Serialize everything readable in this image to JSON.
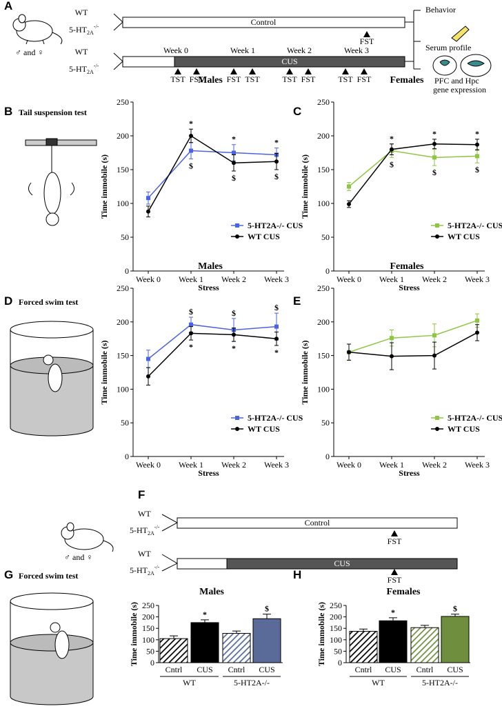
{
  "panel_a": {
    "letter": "A",
    "wt": "WT",
    "ko_base": "5-HT",
    "ko_sub": "2A",
    "ko_sup": "-/-",
    "sexes": "♂ and ♀",
    "control": "Control",
    "control_test": "FST",
    "weeks": [
      "Week 0",
      "Week 1",
      "Week 2",
      "Week 3"
    ],
    "cus": "CUS",
    "tests": [
      "TST",
      "FST",
      "FST",
      "TST",
      "TST",
      "FST",
      "TST",
      "FST"
    ],
    "outputs": [
      "Behavior",
      "Serum profile",
      "PFC and Hpc",
      "gene expression"
    ]
  },
  "panels": {
    "b": {
      "letter": "B",
      "label": "Tail suspension test"
    },
    "c": {
      "letter": "C"
    },
    "d": {
      "letter": "D",
      "label": "Forced swim test"
    },
    "e": {
      "letter": "E"
    },
    "g": {
      "letter": "G",
      "label": "Forced swim test"
    },
    "h": {
      "letter": "H"
    }
  },
  "panel_f": {
    "letter": "F",
    "wt": "WT",
    "ko_base": "5-HT",
    "ko_sub": "2A",
    "ko_sup": "-/-",
    "sexes": "♂ and ♀",
    "control": "Control",
    "cus": "CUS",
    "test": "FST"
  },
  "chart_data": [
    {
      "type": "line",
      "title": "Males",
      "xlabel": "Stress",
      "ylabel": "Time immobile (s)",
      "categories": [
        "Week 0",
        "Week 1",
        "Week 2",
        "Week 3"
      ],
      "ylim": [
        0,
        250
      ],
      "yticks": [
        0,
        50,
        100,
        150,
        200,
        250
      ],
      "series": [
        {
          "name": "5-HT2A-/- CUS",
          "color": "#4a63e0",
          "marker": "square",
          "values": [
            108,
            178,
            175,
            172
          ],
          "errors": [
            9,
            12,
            12,
            10
          ]
        },
        {
          "name": "WT CUS",
          "color": "#000000",
          "marker": "circle",
          "values": [
            88,
            200,
            160,
            162
          ],
          "errors": [
            8,
            10,
            12,
            12
          ]
        }
      ],
      "annotations_above": [
        null,
        "*",
        "*",
        "*"
      ],
      "annotations_below": [
        null,
        "$",
        "$",
        "$"
      ]
    },
    {
      "type": "line",
      "title": "Females",
      "xlabel": "Stress",
      "ylabel": "Time immobile (s)",
      "categories": [
        "Week 0",
        "Week 1",
        "Week 2",
        "Week 3"
      ],
      "ylim": [
        0,
        250
      ],
      "yticks": [
        0,
        50,
        100,
        150,
        200,
        250
      ],
      "series": [
        {
          "name": "5-HT2A-/- CUS",
          "color": "#8dc63f",
          "marker": "square",
          "values": [
            125,
            178,
            168,
            170
          ],
          "errors": [
            6,
            10,
            12,
            10
          ]
        },
        {
          "name": "WT CUS",
          "color": "#000000",
          "marker": "circle",
          "values": [
            99,
            180,
            188,
            187
          ],
          "errors": [
            5,
            8,
            7,
            8
          ]
        }
      ],
      "annotations_above": [
        null,
        "*",
        "*",
        "*"
      ],
      "annotations_below": [
        null,
        "$",
        "$",
        "$"
      ]
    },
    {
      "type": "line",
      "title": "Males",
      "xlabel": "Stress",
      "ylabel": "Time immobile (s)",
      "categories": [
        "Week 0",
        "Week 1",
        "Week 2",
        "Week 3"
      ],
      "ylim": [
        0,
        250
      ],
      "yticks": [
        0,
        50,
        100,
        150,
        200,
        250
      ],
      "series": [
        {
          "name": "5-HT2A-/- CUS",
          "color": "#4a63e0",
          "marker": "square",
          "values": [
            145,
            196,
            188,
            193
          ],
          "errors": [
            13,
            11,
            17,
            20
          ]
        },
        {
          "name": "WT CUS",
          "color": "#000000",
          "marker": "circle",
          "values": [
            119,
            183,
            181,
            175
          ],
          "errors": [
            13,
            10,
            10,
            10
          ]
        }
      ],
      "annotations_above": [
        null,
        "$",
        "$",
        "$"
      ],
      "annotations_below": [
        null,
        "*",
        "*",
        "*"
      ]
    },
    {
      "type": "line",
      "title": "Females",
      "xlabel": "Stress",
      "ylabel": "Time immobile (s)",
      "categories": [
        "Week 0",
        "Week 1",
        "Week 2",
        "Week 3"
      ],
      "ylim": [
        0,
        250
      ],
      "yticks": [
        0,
        50,
        100,
        150,
        200,
        250
      ],
      "series": [
        {
          "name": "5-HT2A-/- CUS",
          "color": "#8dc63f",
          "marker": "square",
          "values": [
            155,
            176,
            180,
            202
          ],
          "errors": [
            12,
            12,
            17,
            10
          ]
        },
        {
          "name": "WT CUS",
          "color": "#000000",
          "marker": "circle",
          "values": [
            155,
            149,
            150,
            184
          ],
          "errors": [
            12,
            20,
            20,
            12
          ]
        }
      ]
    },
    {
      "type": "bar",
      "title": "Males",
      "ylabel": "Time immobile (s)",
      "categories": [
        "Cntrl",
        "CUS",
        "Cntrl",
        "CUS"
      ],
      "groups": [
        "WT",
        "5-HT2A-/-"
      ],
      "ylim": [
        0,
        250
      ],
      "yticks": [
        0,
        50,
        100,
        150,
        200,
        250
      ],
      "values": [
        105,
        175,
        128,
        192
      ],
      "errors": [
        12,
        12,
        10,
        20
      ],
      "colors": [
        "#000000",
        "#000000",
        "#5a6a99",
        "#5a6a99"
      ],
      "hatched": [
        true,
        false,
        true,
        false
      ],
      "annotations": [
        null,
        "*",
        null,
        "$"
      ]
    },
    {
      "type": "bar",
      "title": "Females",
      "ylabel": "Time immobile (s)",
      "categories": [
        "Cntrl",
        "CUS",
        "Cntrl",
        "CUS"
      ],
      "groups": [
        "WT",
        "5-HT2A-/-"
      ],
      "ylim": [
        0,
        250
      ],
      "yticks": [
        0,
        50,
        100,
        150,
        200,
        250
      ],
      "values": [
        137,
        183,
        153,
        202
      ],
      "errors": [
        10,
        13,
        10,
        10
      ],
      "colors": [
        "#000000",
        "#000000",
        "#6f8f3f",
        "#6f8f3f"
      ],
      "hatched": [
        true,
        false,
        true,
        false
      ],
      "annotations": [
        null,
        "*",
        null,
        "$"
      ]
    }
  ]
}
